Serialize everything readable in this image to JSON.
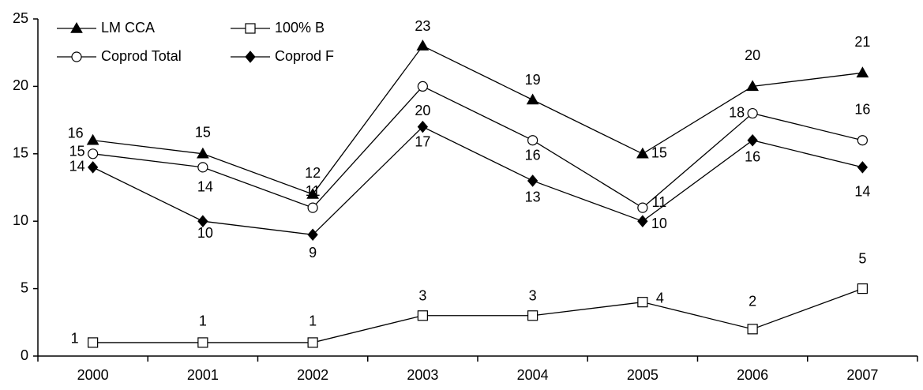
{
  "chart_data": {
    "type": "line",
    "title": "",
    "xlabel": "",
    "ylabel": "",
    "categories": [
      "2000",
      "2001",
      "2002",
      "2003",
      "2004",
      "2005",
      "2006",
      "2007"
    ],
    "ylim": [
      0,
      25
    ],
    "yticks": [
      "0",
      "5",
      "10",
      "15",
      "20",
      "25"
    ],
    "grid": false,
    "legend_position": "top-left",
    "series": [
      {
        "name": "LM CCA",
        "marker": "filled-triangle",
        "color": "#000000",
        "values": [
          16,
          15,
          12,
          23,
          19,
          15,
          20,
          21
        ],
        "labels": [
          "16",
          "15",
          "12",
          "23",
          "19",
          "15",
          "20",
          "21"
        ]
      },
      {
        "name": "100% B",
        "marker": "open-square",
        "color": "#000000",
        "values": [
          1,
          1,
          1,
          3,
          3,
          4,
          2,
          5
        ],
        "labels": [
          "1",
          "1",
          "1",
          "3",
          "3",
          "4",
          "2",
          "5"
        ]
      },
      {
        "name": "Coprod Total",
        "marker": "open-circle",
        "color": "#000000",
        "values": [
          15,
          14,
          11,
          20,
          16,
          11,
          18,
          16
        ],
        "labels": [
          "15",
          "14",
          "11",
          "20",
          "16",
          "11",
          "18",
          "16"
        ]
      },
      {
        "name": "Coprod F",
        "marker": "filled-diamond",
        "color": "#000000",
        "values": [
          14,
          10,
          9,
          17,
          13,
          10,
          16,
          14
        ],
        "labels": [
          "14",
          "10",
          "9",
          "17",
          "13",
          "10",
          "16",
          "14"
        ]
      }
    ]
  }
}
